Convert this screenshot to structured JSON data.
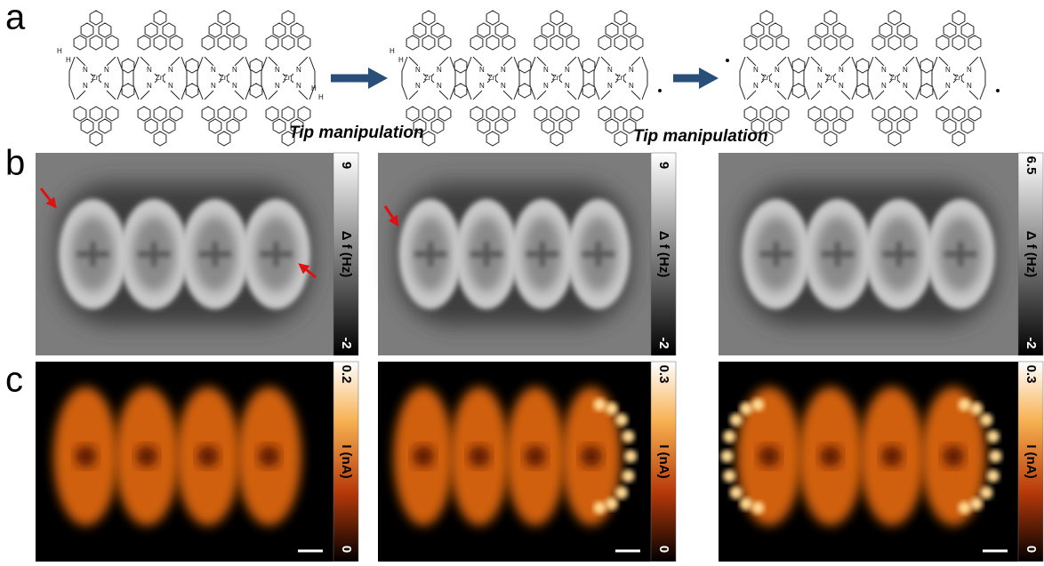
{
  "panels": {
    "a": {
      "label": "a",
      "molecules": [
        {
          "h_left": [
            "H",
            "H"
          ],
          "h_right": [
            "H",
            "H"
          ],
          "zn": [
            "Zn",
            "Zn",
            "Zn",
            "Zn"
          ],
          "n": [
            "N",
            "N",
            "N",
            "N",
            "N",
            "N",
            "N",
            "N",
            "N",
            "N",
            "N",
            "N",
            "N",
            "N",
            "N",
            "N"
          ]
        },
        {
          "h_left": [
            "H",
            "H"
          ],
          "h_right": [],
          "zn": [
            "Zn",
            "Zn",
            "Zn",
            "Zn"
          ],
          "n": [
            "N",
            "N",
            "N",
            "N",
            "N",
            "N",
            "N",
            "N",
            "N",
            "N",
            "N",
            "N",
            "N",
            "N",
            "N",
            "N"
          ]
        },
        {
          "h_left": [],
          "h_right": [],
          "zn": [
            "Zn",
            "Zn",
            "Zn",
            "Zn"
          ],
          "n": [
            "N",
            "N",
            "N",
            "N",
            "N",
            "N",
            "N",
            "N",
            "N",
            "N",
            "N",
            "N",
            "N",
            "N",
            "N",
            "N"
          ]
        }
      ],
      "captions": [
        "Tip manipulation",
        "Tip manipulation"
      ]
    },
    "b": {
      "label": "b",
      "images": [
        {
          "max": "9",
          "min": "-2",
          "title": "Δ f (Hz)"
        },
        {
          "max": "9",
          "min": "-2",
          "title": "Δ f (Hz)"
        },
        {
          "max": "6.5",
          "min": "-2",
          "title": "Δ f (Hz)"
        }
      ]
    },
    "c": {
      "label": "c",
      "images": [
        {
          "max": "0.2",
          "min": "0",
          "title": "I (nA)"
        },
        {
          "max": "0.3",
          "min": "0",
          "title": "I (nA)"
        },
        {
          "max": "0.3",
          "min": "0",
          "title": "I (nA)"
        }
      ]
    }
  }
}
